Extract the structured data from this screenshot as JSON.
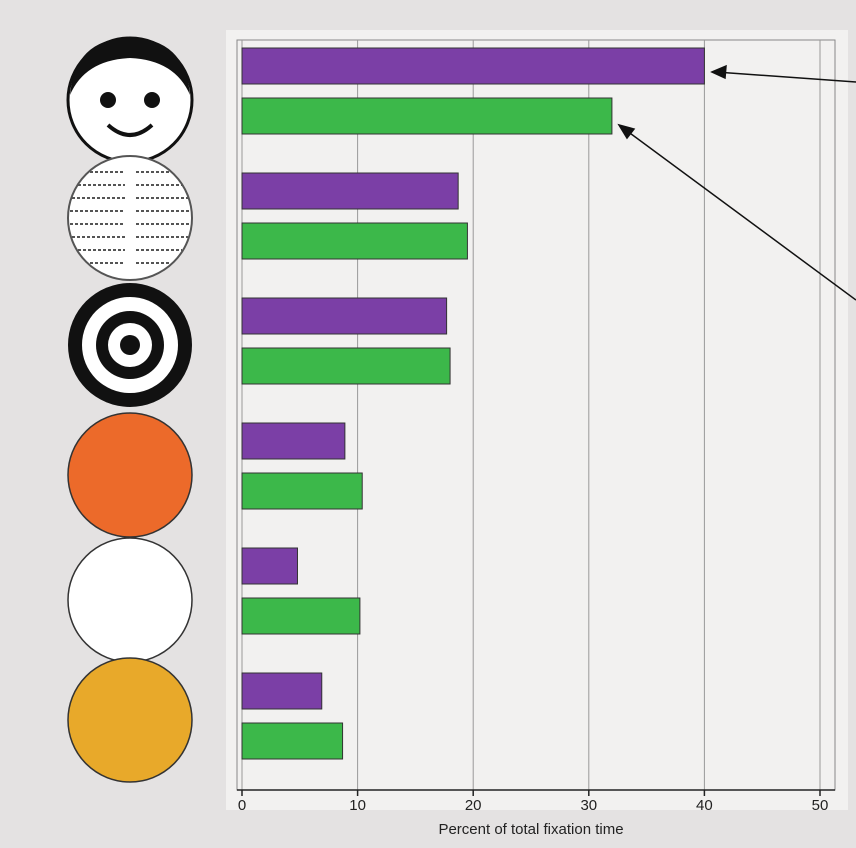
{
  "chart_data": {
    "type": "bar",
    "orientation": "horizontal",
    "xlabel": "Percent of total fixation time",
    "categories": [
      null,
      null,
      null,
      null,
      null,
      null
    ],
    "series": [
      {
        "color": "#7b3fa6",
        "values": [
          40,
          18.7,
          17.7,
          8.9,
          4.8,
          6.9
        ]
      },
      {
        "color": "#3cb84a",
        "values": [
          32,
          19.5,
          18,
          10.4,
          10.2,
          8.7
        ]
      }
    ],
    "xlim": [
      0,
      50
    ],
    "xticks": [
      0,
      10,
      20,
      30,
      40,
      50
    ],
    "grid": true
  }
}
